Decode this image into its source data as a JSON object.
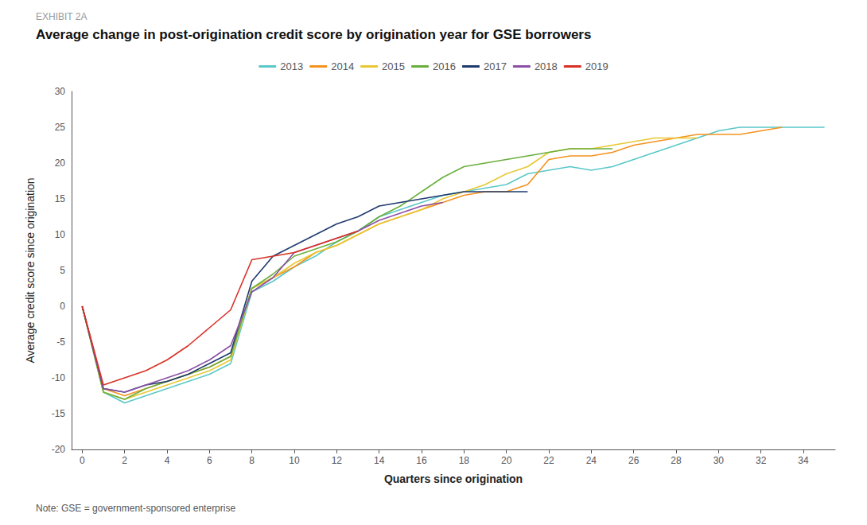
{
  "chart_data": {
    "type": "line",
    "title": "Average change in post-origination credit score by origination year for GSE borrowers",
    "subtitle": "EXHIBIT 2A",
    "annotations": [
      "Note: GSE = government-sponsored enterprise"
    ],
    "xlabel": "Quarters since origination",
    "ylabel": "Average credit score since origination",
    "xlim": [
      -0.5,
      35.5
    ],
    "ylim": [
      -20,
      30
    ],
    "xticks": [
      0,
      2,
      4,
      6,
      8,
      10,
      12,
      14,
      16,
      18,
      20,
      22,
      24,
      26,
      28,
      30,
      32,
      34
    ],
    "yticks": [
      -20,
      -15,
      -10,
      -5,
      0,
      5,
      10,
      15,
      20,
      25,
      30
    ],
    "grid": false,
    "legend": "top",
    "series": [
      {
        "name": "2013",
        "color": "#5BC8C8",
        "x": [
          0,
          1,
          2,
          3,
          4,
          5,
          6,
          7,
          8,
          9,
          10,
          11,
          12,
          13,
          14,
          15,
          16,
          17,
          18,
          19,
          20,
          21,
          22,
          23,
          24,
          25,
          26,
          27,
          28,
          29,
          30,
          31,
          32,
          33,
          34,
          35
        ],
        "values": [
          0,
          -12.0,
          -13.5,
          -12.5,
          -11.5,
          -10.5,
          -9.5,
          -8.0,
          2.0,
          3.5,
          5.5,
          7.0,
          9.0,
          10.5,
          12.5,
          13.5,
          14.5,
          15.5,
          16.0,
          16.5,
          17.0,
          18.5,
          19.0,
          19.5,
          19.0,
          19.5,
          20.5,
          21.5,
          22.5,
          23.5,
          24.5,
          25.0,
          25.0,
          25.0,
          25.0,
          25.0
        ]
      },
      {
        "name": "2014",
        "color": "#F5921E",
        "x": [
          0,
          1,
          2,
          3,
          4,
          5,
          6,
          7,
          8,
          9,
          10,
          11,
          12,
          13,
          14,
          15,
          16,
          17,
          18,
          19,
          20,
          21,
          22,
          23,
          24,
          25,
          26,
          27,
          28,
          29,
          30,
          31,
          32,
          33
        ],
        "values": [
          0,
          -11.5,
          -12.5,
          -11.5,
          -10.5,
          -9.5,
          -8.5,
          -7.0,
          2.5,
          4.0,
          5.5,
          7.5,
          8.5,
          10.0,
          11.5,
          12.5,
          13.5,
          14.5,
          15.5,
          16.0,
          16.0,
          17.0,
          20.5,
          21.0,
          21.0,
          21.5,
          22.5,
          23.0,
          23.5,
          24.0,
          24.0,
          24.0,
          24.5,
          25.0
        ]
      },
      {
        "name": "2015",
        "color": "#E8C832",
        "x": [
          0,
          1,
          2,
          3,
          4,
          5,
          6,
          7,
          8,
          9,
          10,
          11,
          12,
          13,
          14,
          15,
          16,
          17,
          18,
          19,
          20,
          21,
          22,
          23,
          24,
          25,
          26,
          27,
          28,
          29
        ],
        "values": [
          0,
          -12.0,
          -13.0,
          -12.0,
          -11.0,
          -10.0,
          -9.0,
          -7.5,
          2.5,
          4.0,
          6.0,
          7.5,
          8.5,
          10.0,
          11.5,
          12.5,
          13.5,
          15.0,
          16.0,
          17.0,
          18.5,
          19.5,
          21.5,
          22.0,
          22.0,
          22.5,
          23.0,
          23.5,
          23.5,
          23.5
        ]
      },
      {
        "name": "2016",
        "color": "#6AAF3D",
        "x": [
          0,
          1,
          2,
          3,
          4,
          5,
          6,
          7,
          8,
          9,
          10,
          11,
          12,
          13,
          14,
          15,
          16,
          17,
          18,
          19,
          20,
          21,
          22,
          23,
          24,
          25
        ],
        "values": [
          0,
          -12.0,
          -13.0,
          -11.5,
          -10.5,
          -9.5,
          -8.5,
          -7.0,
          2.5,
          4.5,
          7.0,
          8.0,
          9.0,
          10.5,
          12.5,
          14.0,
          16.0,
          18.0,
          19.5,
          20.0,
          20.5,
          21.0,
          21.5,
          22.0,
          22.0,
          22.0
        ]
      },
      {
        "name": "2017",
        "color": "#1F3A6E",
        "x": [
          0,
          1,
          2,
          3,
          4,
          5,
          6,
          7,
          8,
          9,
          10,
          11,
          12,
          13,
          14,
          15,
          16,
          17,
          18,
          19,
          20,
          21
        ],
        "values": [
          0,
          -11.5,
          -12.0,
          -11.0,
          -10.5,
          -9.5,
          -8.0,
          -6.5,
          3.5,
          7.0,
          8.5,
          10.0,
          11.5,
          12.5,
          14.0,
          14.5,
          15.0,
          15.5,
          16.0,
          16.0,
          16.0,
          16.0
        ]
      },
      {
        "name": "2018",
        "color": "#8B4FA6",
        "x": [
          0,
          1,
          2,
          3,
          4,
          5,
          6,
          7,
          8,
          9,
          10,
          11,
          12,
          13,
          14,
          15,
          16,
          17
        ],
        "values": [
          0,
          -11.5,
          -12.0,
          -11.0,
          -10.0,
          -9.0,
          -7.5,
          -5.5,
          2.0,
          4.0,
          7.5,
          8.5,
          9.5,
          10.5,
          12.0,
          13.0,
          14.0,
          14.5
        ]
      },
      {
        "name": "2019",
        "color": "#D93025",
        "x": [
          0,
          1,
          2,
          3,
          4,
          5,
          6,
          7,
          8,
          9,
          10,
          11,
          12,
          13
        ],
        "values": [
          0,
          -11.0,
          -10.0,
          -9.0,
          -7.5,
          -5.5,
          -3.0,
          -0.5,
          6.5,
          7.0,
          7.5,
          8.5,
          9.5,
          10.5
        ]
      }
    ]
  }
}
